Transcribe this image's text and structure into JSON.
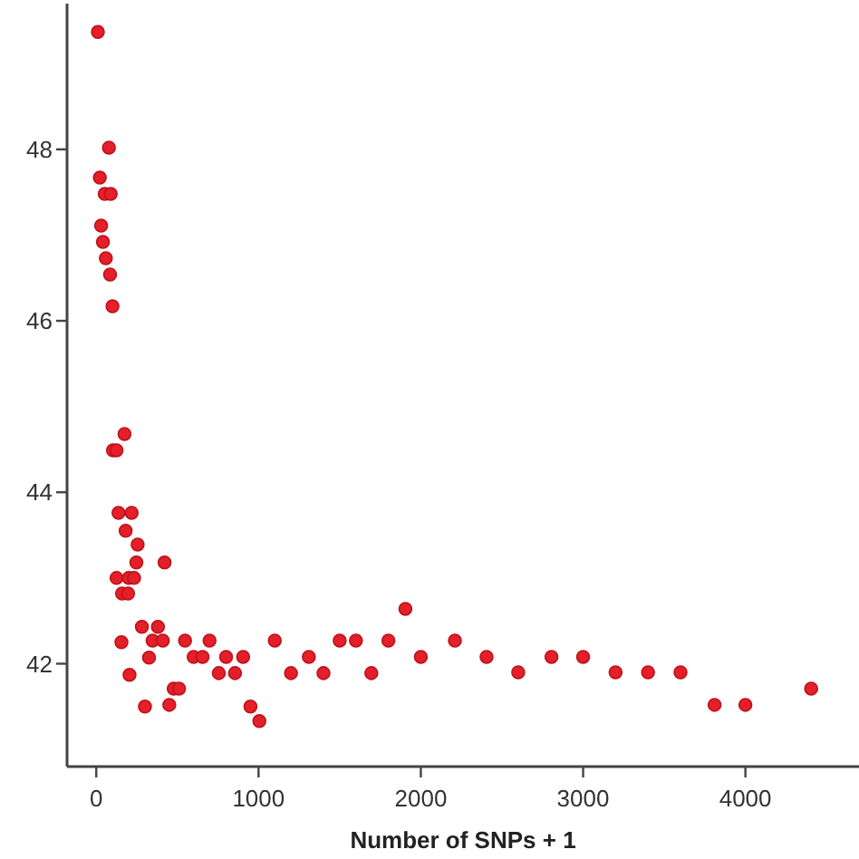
{
  "chart_data": {
    "type": "scatter",
    "xlabel": "Number of SNPs + 1",
    "xlim": [
      -180,
      4700
    ],
    "ylim": [
      40.8,
      49.7
    ],
    "xticks": [
      0,
      1000,
      2000,
      3000,
      4000
    ],
    "yticks": [
      42,
      44,
      46,
      48
    ],
    "marker": "circle",
    "grid": false,
    "series": [
      {
        "color": "#e3202a",
        "x": [
          10,
          78,
          22,
          52,
          89,
          30,
          41,
          59,
          85,
          100,
          103,
          125,
          174,
          137,
          218,
          181,
          255,
          247,
          421,
          125,
          200,
          233,
          159,
          196,
          281,
          380,
          155,
          347,
          410,
          547,
          698,
          1100,
          1500,
          1600,
          1800,
          325,
          600,
          655,
          800,
          905,
          1310,
          2000,
          205,
          755,
          855,
          1200,
          1400,
          1695,
          477,
          510,
          300,
          450,
          950,
          1005,
          1905,
          2210,
          2405,
          2600,
          2805,
          3000,
          3200,
          3400,
          3600,
          3810,
          4000,
          4405
        ],
        "values": [
          49.37,
          48.02,
          47.67,
          47.48,
          47.48,
          47.11,
          46.92,
          46.73,
          46.54,
          46.17,
          44.49,
          44.49,
          44.68,
          43.76,
          43.76,
          43.55,
          43.39,
          43.18,
          43.18,
          43.0,
          43.0,
          43.0,
          42.82,
          42.82,
          42.43,
          42.43,
          42.25,
          42.27,
          42.27,
          42.27,
          42.27,
          42.27,
          42.27,
          42.27,
          42.27,
          42.07,
          42.08,
          42.08,
          42.08,
          42.08,
          42.08,
          42.08,
          41.87,
          41.89,
          41.89,
          41.89,
          41.89,
          41.89,
          41.71,
          41.71,
          41.5,
          41.52,
          41.5,
          41.33,
          42.64,
          42.27,
          42.08,
          41.9,
          42.08,
          42.08,
          41.9,
          41.9,
          41.9,
          41.52,
          41.52,
          41.71
        ]
      }
    ]
  }
}
